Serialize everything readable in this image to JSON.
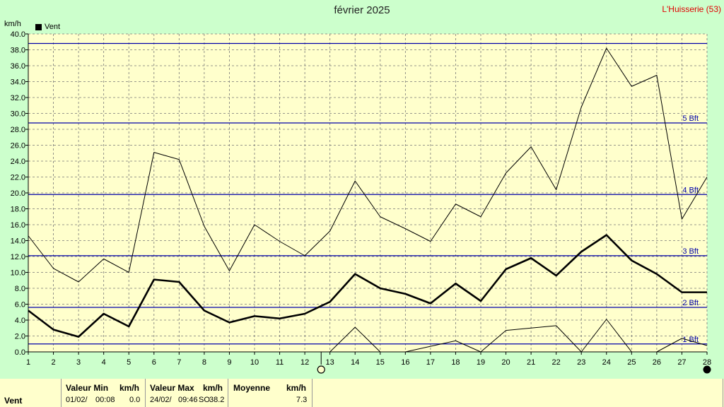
{
  "header": {
    "title": "février 2025",
    "location": "L'Huisserie (53)",
    "unit": "km/h",
    "legend_label": "Vent"
  },
  "chart_data": {
    "type": "line",
    "title": "février 2025",
    "ylabel": "km/h",
    "xlabel": "",
    "xlim": [
      1,
      28
    ],
    "ylim": [
      0,
      40
    ],
    "x_ticks": [
      1,
      2,
      3,
      4,
      5,
      6,
      7,
      8,
      9,
      10,
      11,
      12,
      13,
      14,
      15,
      16,
      17,
      18,
      19,
      20,
      21,
      22,
      23,
      24,
      25,
      26,
      27,
      28
    ],
    "y_ticks": [
      "0.0",
      "2.0",
      "4.0",
      "6.0",
      "8.0",
      "10.0",
      "12.0",
      "14.0",
      "16.0",
      "18.0",
      "20.0",
      "22.0",
      "24.0",
      "26.0",
      "28.0",
      "30.0",
      "32.0",
      "34.0",
      "36.0",
      "38.0",
      "40.0"
    ],
    "grid": true,
    "legend": "top-left",
    "series": [
      {
        "name": "Vent",
        "kind": "mean",
        "x": [
          1,
          2,
          3,
          4,
          5,
          6,
          7,
          8,
          9,
          10,
          11,
          12,
          13,
          14,
          15,
          16,
          17,
          18,
          19,
          20,
          21,
          22,
          23,
          24,
          25,
          26,
          27,
          28
        ],
        "values": [
          5.2,
          2.8,
          1.9,
          4.8,
          3.2,
          9.1,
          8.8,
          5.2,
          3.7,
          4.5,
          4.2,
          4.8,
          6.3,
          9.8,
          8.0,
          7.3,
          6.1,
          8.6,
          6.4,
          10.4,
          11.8,
          9.6,
          12.6,
          14.7,
          11.5,
          9.8,
          7.5,
          7.5
        ]
      },
      {
        "kind": "max",
        "x": [
          1,
          2,
          3,
          4,
          5,
          6,
          7,
          8,
          9,
          10,
          11,
          12,
          13,
          14,
          15,
          16,
          17,
          18,
          19,
          20,
          21,
          22,
          23,
          24,
          25,
          26,
          27,
          28
        ],
        "values": [
          14.6,
          10.5,
          8.8,
          11.7,
          10.0,
          25.1,
          24.2,
          15.8,
          10.2,
          16.0,
          13.9,
          12.1,
          15.2,
          21.5,
          17.0,
          15.5,
          13.9,
          18.6,
          17.0,
          22.5,
          25.8,
          20.4,
          30.8,
          38.2,
          33.4,
          34.8,
          16.7,
          22.0
        ]
      },
      {
        "kind": "min",
        "x": [
          13,
          14,
          15,
          16,
          17,
          18,
          19,
          20,
          21,
          22,
          23,
          24,
          25,
          26,
          27,
          28
        ],
        "values": [
          0.0,
          3.1,
          0.0,
          0.0,
          0.7,
          1.4,
          0.0,
          2.7,
          3.0,
          3.3,
          0.0,
          4.1,
          0.0,
          0.0,
          1.7,
          0.8
        ]
      }
    ],
    "reference_lines": [
      {
        "label": "1 Bft",
        "value": 1.0
      },
      {
        "label": "2 Bft",
        "value": 5.6
      },
      {
        "label": "3 Bft",
        "value": 12.1
      },
      {
        "label": "4 Bft",
        "value": 19.8
      },
      {
        "label": "5 Bft",
        "value": 28.8
      },
      {
        "label": "",
        "value": 38.8
      }
    ],
    "moon_phases": [
      {
        "day": 12.65,
        "phase": "full"
      },
      {
        "day": 28,
        "phase": "new"
      }
    ]
  },
  "stats": {
    "row_label": "Vent",
    "min_header": "Valeur Min",
    "min_unit": "km/h",
    "min_date": "01/02/",
    "min_time": "00:08",
    "min_value": "0.0",
    "max_header": "Valeur Max",
    "max_unit": "km/h",
    "max_date": "24/02/",
    "max_time": "09:46",
    "max_dir": "SO",
    "max_value": "38.2",
    "avg_header": "Moyenne",
    "avg_unit": "km/h",
    "avg_value": "7.3"
  },
  "colors": {
    "background": "#ccffcc",
    "plot_background": "#ffffcc",
    "beaufort_line": "#0000aa",
    "location_text": "#e00000"
  }
}
